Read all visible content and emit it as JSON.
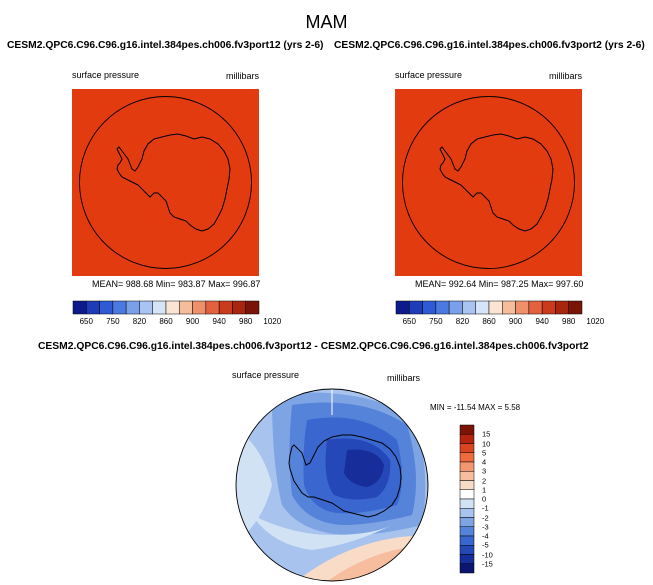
{
  "title": "MAM",
  "panels": [
    {
      "case_title": "CESM2.QPC6.C96.C96.g16.intel.384pes.ch006.fv3port12 (yrs 2-6)",
      "variable": "surface pressure",
      "units": "millibars",
      "stats": "MEAN= 988.68  Min= 983.87  Max= 996.87",
      "fill_color": "#e23b0f"
    },
    {
      "case_title": "CESM2.QPC6.C96.C96.g16.intel.384pes.ch006.fv3port2 (yrs 2-6)",
      "variable": "surface pressure",
      "units": "millibars",
      "stats": "MEAN= 992.64  Min= 987.25  Max= 997.60",
      "fill_color": "#e23b0f"
    }
  ],
  "top_colorbar": {
    "colors": [
      "#0d1a8c",
      "#1f3cb8",
      "#2f5ad6",
      "#4a7ae0",
      "#7aa0ea",
      "#a9c4f2",
      "#d6e4f7",
      "#fbe4d4",
      "#f6bd9c",
      "#f0906a",
      "#e4613f",
      "#cc3a1c",
      "#a8260e",
      "#7a1406"
    ],
    "labels": [
      "650",
      "750",
      "820",
      "860",
      "900",
      "940",
      "980",
      "1020"
    ]
  },
  "diff": {
    "title": "CESM2.QPC6.C96.C96.g16.intel.384pes.ch006.fv3port12 - CESM2.QPC6.C96.C96.g16.intel.384pes.ch006.fv3port2",
    "variable": "surface pressure",
    "units": "millibars",
    "stats": "MIN = -11.54 MAX =   5.58",
    "colorbar": {
      "colors": [
        "#7a1406",
        "#b2240e",
        "#d8451f",
        "#ec6c40",
        "#f39770",
        "#f7bd9f",
        "#f9dcc8",
        "#ffffff",
        "#d2e2f5",
        "#a8c4ee",
        "#7ea4e4",
        "#5583da",
        "#3a66cf",
        "#2548b8",
        "#162d9a",
        "#0b1670"
      ],
      "labels": [
        "15",
        "10",
        "5",
        "4",
        "3",
        "2",
        "1",
        "0",
        "-1",
        "-2",
        "-3",
        "-4",
        "-5",
        "-10",
        "-15"
      ]
    }
  }
}
